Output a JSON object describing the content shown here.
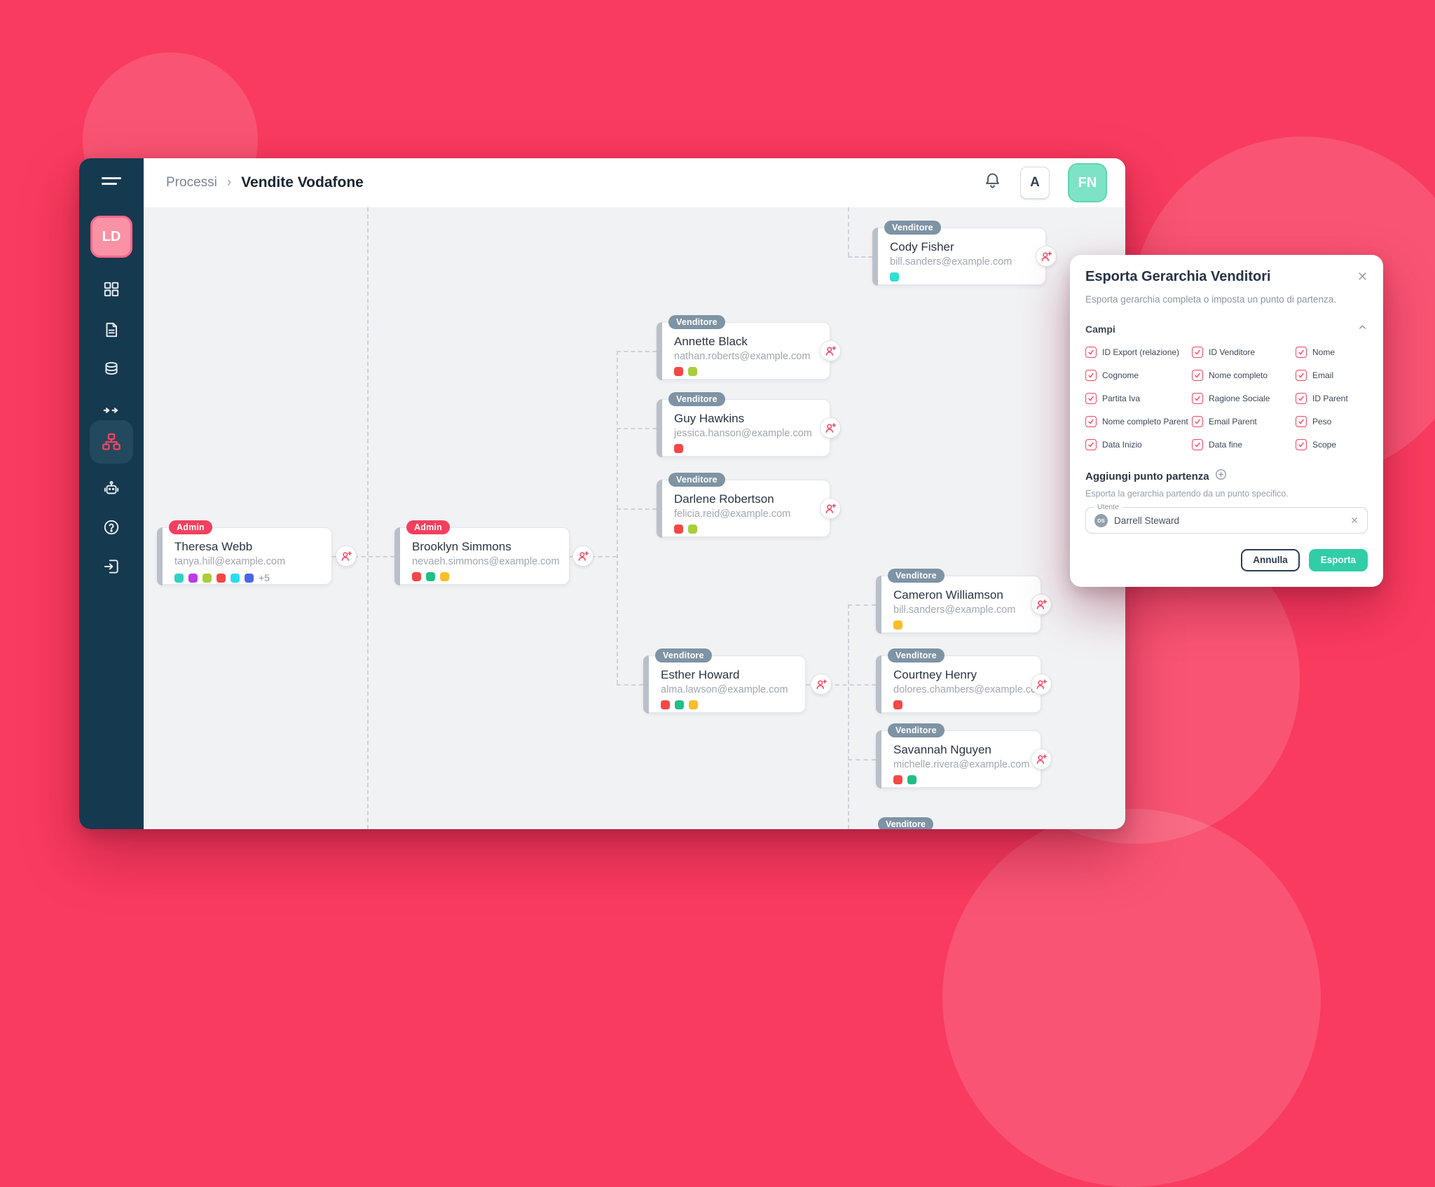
{
  "breadcrumb": {
    "section": "Processi",
    "separator": "›",
    "current": "Vendite Vodafone"
  },
  "header": {
    "shortcut_key": "A",
    "avatar_initials": "FN",
    "icons": [
      "bell-icon"
    ]
  },
  "sidebar": {
    "avatar_initials": "LD",
    "icons": [
      "menu-icon",
      "dashboard-grid-icon",
      "document-icon",
      "database-icon",
      "arrows-flow-icon",
      "hierarchy-icon",
      "robot-icon",
      "help-icon",
      "logout-icon"
    ]
  },
  "nodes": [
    {
      "badge": "Admin",
      "name": "Theresa Webb",
      "email": "tanya.hill@example.com",
      "chips": [
        "#2ed3c0",
        "#bb3be6",
        "#a6cf39",
        "#f44846",
        "#2adcf2",
        "#4a66e8"
      ],
      "more": "+5"
    },
    {
      "badge": "Admin",
      "name": "Brooklyn Simmons",
      "email": "nevaeh.simmons@example.com",
      "chips": [
        "#f44846",
        "#20bf85",
        "#fcbd2a"
      ]
    },
    {
      "badge": "Venditore",
      "name": "Cody Fisher",
      "email": "bill.sanders@example.com",
      "chips": [
        "#30e0d2"
      ]
    },
    {
      "badge": "Venditore",
      "name": "Annette Black",
      "email": "nathan.roberts@example.com",
      "chips": [
        "#f44846",
        "#a6cf39"
      ]
    },
    {
      "badge": "Venditore",
      "name": "Guy Hawkins",
      "email": "jessica.hanson@example.com",
      "chips": [
        "#f44846"
      ]
    },
    {
      "badge": "Venditore",
      "name": "Darlene Robertson",
      "email": "felicia.reid@example.com",
      "chips": [
        "#f44846",
        "#a6cf39"
      ]
    },
    {
      "badge": "Venditore",
      "name": "Esther Howard",
      "email": "alma.lawson@example.com",
      "chips": [
        "#f44846",
        "#20bf85",
        "#fcbd2a"
      ]
    },
    {
      "badge": "Venditore",
      "name": "Cameron Williamson",
      "email": "bill.sanders@example.com",
      "chips": [
        "#fcbd2a"
      ]
    },
    {
      "badge": "Venditore",
      "name": "Courtney Henry",
      "email": "dolores.chambers@example.com",
      "chips": [
        "#f44846"
      ]
    },
    {
      "badge": "Venditore",
      "name": "Savannah Nguyen",
      "email": "michelle.rivera@example.com",
      "chips": [
        "#f44846",
        "#20bf85"
      ]
    }
  ],
  "partial_badge": "Venditore",
  "modal": {
    "title": "Esporta Gerarchia Venditori",
    "close": "✕",
    "subtitle": "Esporta gerarchia completa o imposta un punto di partenza.",
    "section": "Campi",
    "fields": [
      "ID Export (relazione)",
      "ID Venditore",
      "Nome",
      "Cognome",
      "Nome completo",
      "Email",
      "Partita Iva",
      "Ragione Sociale",
      "ID Parent",
      "Nome completo Parent",
      "Email Parent",
      "Peso",
      "Data Inizio",
      "Data fine",
      "Scope"
    ],
    "add_title": "Aggiungi punto partenza",
    "add_desc": "Esporta la gerarchia partendo da un punto specifico.",
    "input": {
      "label": "Utente",
      "avatar_initials": "DS",
      "value": "Darrell Steward",
      "clear": "✕"
    },
    "buttons": {
      "cancel": "Annulla",
      "submit": "Esporta"
    }
  },
  "colors": {
    "background": "#f93b5f",
    "sidebar": "#15394f",
    "canvas": "#f1f2f4",
    "accent_pink": "#f4435f",
    "badge_admin": "#f43f5e",
    "badge_venditore": "#7e93a4",
    "button_teal": "#31cda7",
    "avatar_teal": "#7ee3c6",
    "avatar_pink": "#fa92a6"
  }
}
